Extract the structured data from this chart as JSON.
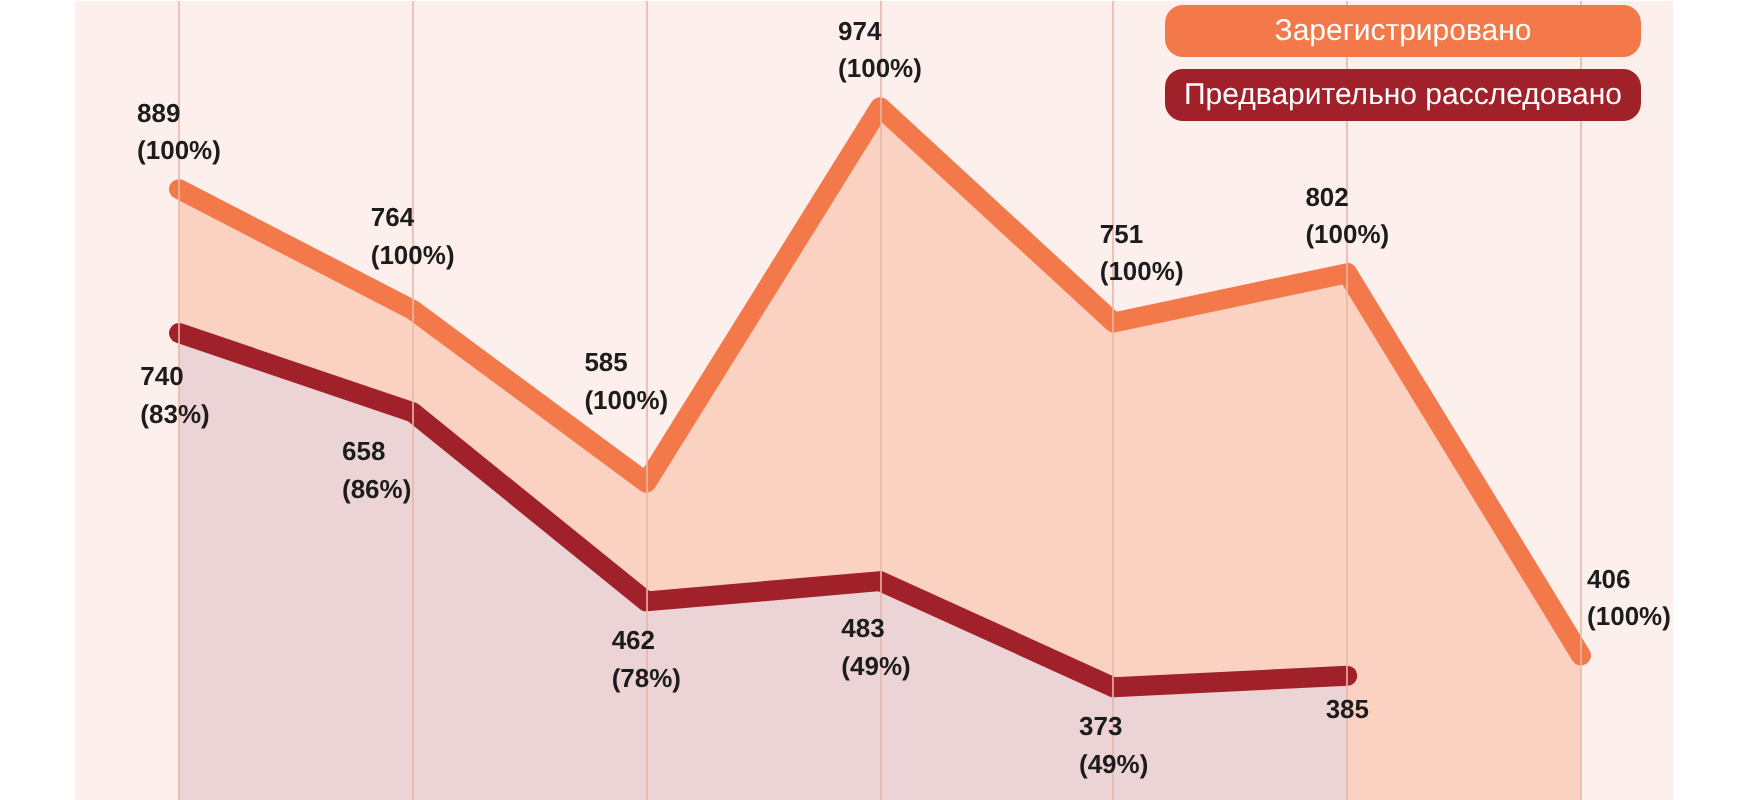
{
  "chart_data": {
    "type": "area",
    "categories": [
      null,
      null,
      null,
      null,
      null,
      null,
      null
    ],
    "series": [
      {
        "name": "Зарегистрировано",
        "color": "#f4794a",
        "values": [
          889,
          764,
          585,
          974,
          751,
          802,
          406
        ],
        "value_labels": [
          "889\n(100%)",
          "764\n(100%)",
          "585\n(100%)",
          "974\n(100%)",
          "751\n(100%)",
          "802\n(100%)",
          "406\n(100%)"
        ]
      },
      {
        "name": "Предварительно расследовано",
        "color": "#a1212b",
        "values": [
          740,
          658,
          462,
          483,
          373,
          385,
          null
        ],
        "value_labels": [
          "740\n(83%)",
          "658\n(86%)",
          "462\n(78%)",
          "483\n(49%)",
          "373\n(49%)",
          "385",
          null
        ]
      }
    ],
    "legend": "top right",
    "grid": "x",
    "line_style": "solid"
  }
}
